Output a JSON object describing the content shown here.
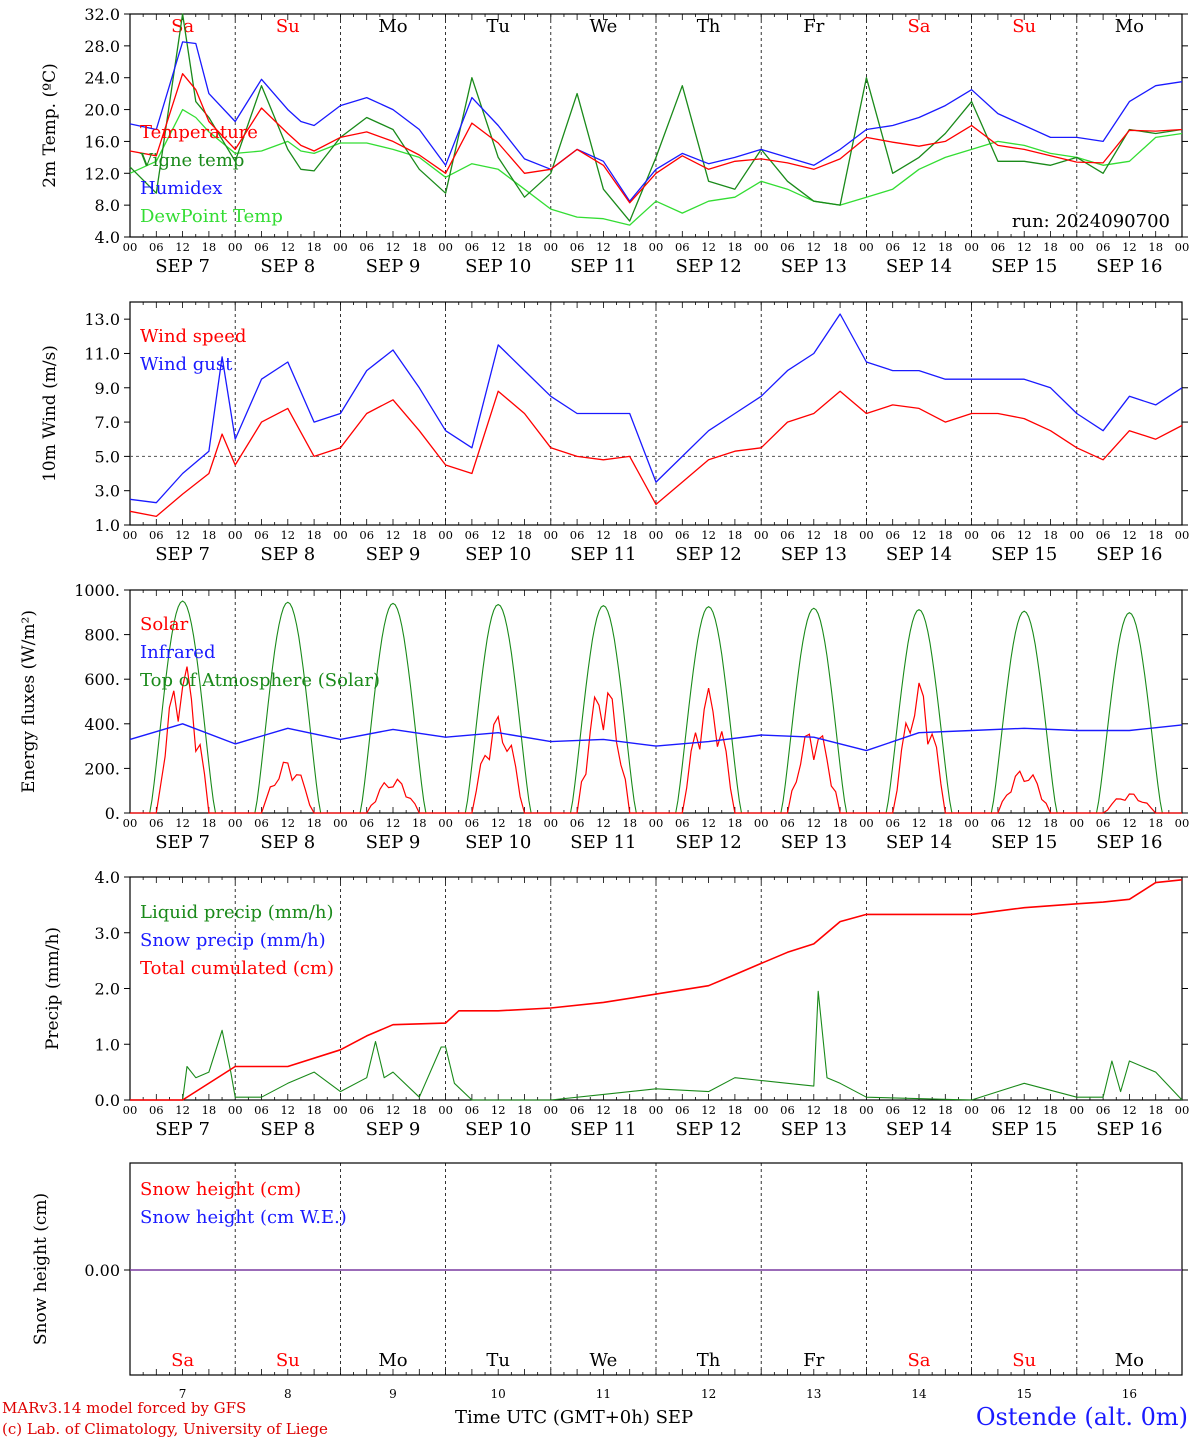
{
  "colors": {
    "red": "#ff0000",
    "green": "#1a8a1a",
    "blue": "#1a1aff",
    "lightgreen": "#33dd33",
    "purple": "#7a3aa0"
  },
  "footer": {
    "credit1": "MARv3.14 model forced by GFS",
    "credit2": "(c) Lab. of Climatology, University of Liege",
    "xtitle": "Time UTC (GMT+0h) SEP",
    "station": "Ostende (alt. 0m)"
  },
  "days": [
    {
      "short": "Sa",
      "weekend": true,
      "date": "SEP  7",
      "num": "7"
    },
    {
      "short": "Su",
      "weekend": true,
      "date": "SEP  8",
      "num": "8"
    },
    {
      "short": "Mo",
      "weekend": false,
      "date": "SEP  9",
      "num": "9"
    },
    {
      "short": "Tu",
      "weekend": false,
      "date": "SEP 10",
      "num": "10"
    },
    {
      "short": "We",
      "weekend": false,
      "date": "SEP 11",
      "num": "11"
    },
    {
      "short": "Th",
      "weekend": false,
      "date": "SEP 12",
      "num": "12"
    },
    {
      "short": "Fr",
      "weekend": false,
      "date": "SEP 13",
      "num": "13"
    },
    {
      "short": "Sa",
      "weekend": true,
      "date": "SEP 14",
      "num": "14"
    },
    {
      "short": "Su",
      "weekend": true,
      "date": "SEP 15",
      "num": "15"
    },
    {
      "short": "Mo",
      "weekend": false,
      "date": "SEP 16",
      "num": "16"
    }
  ],
  "hour_ticks": [
    "00",
    "06",
    "12",
    "18"
  ],
  "chart_data": [
    {
      "type": "line",
      "ylabel": "2m Temp. (ºC)",
      "ylim": [
        4,
        32
      ],
      "yticks": [
        "4.0",
        "8.0",
        "12.0",
        "16.0",
        "20.0",
        "24.0",
        "28.0",
        "32.0"
      ],
      "run_label": "run: 2024090700",
      "x_hours": [
        0,
        6,
        12,
        15,
        18,
        24,
        30,
        36,
        39,
        42,
        48,
        54,
        60,
        66,
        72,
        78,
        84,
        90,
        96,
        102,
        108,
        114,
        120,
        126,
        132,
        138,
        144,
        150,
        156,
        162,
        168,
        174,
        180,
        186,
        192,
        198,
        204,
        210,
        216,
        222,
        228,
        234,
        240
      ],
      "series": [
        {
          "name": "Temperature",
          "color": "red",
          "values": [
            14.8,
            14.2,
            24.5,
            22.5,
            18.5,
            15.0,
            20.2,
            17.0,
            15.5,
            14.8,
            16.5,
            17.2,
            16.0,
            14.3,
            12.0,
            18.3,
            15.8,
            12.0,
            12.5,
            15.0,
            13.0,
            8.3,
            12.0,
            14.2,
            12.5,
            13.5,
            13.8,
            13.3,
            12.5,
            13.8,
            16.5,
            15.9,
            15.4,
            16.0,
            18.0,
            15.5,
            15.0,
            14.2,
            13.4,
            13.3,
            17.4,
            17.3,
            17.5
          ]
        },
        {
          "name": "Vigne temp",
          "color": "green",
          "values": [
            12.8,
            9.5,
            32.0,
            21.0,
            19.0,
            13.5,
            23.0,
            15.0,
            12.5,
            12.3,
            16.5,
            19.0,
            17.5,
            12.5,
            9.5,
            24.0,
            14.0,
            9.0,
            12.0,
            22.0,
            10.0,
            6.0,
            14.0,
            23.0,
            11.0,
            10.0,
            15.0,
            11.0,
            8.5,
            8.0,
            24.0,
            12.0,
            14.0,
            17.0,
            21.0,
            13.5,
            13.5,
            13.0,
            14.0,
            12.0,
            17.5,
            17.0,
            17.5
          ]
        },
        {
          "name": "Humidex",
          "color": "blue",
          "values": [
            18.2,
            17.5,
            28.5,
            28.3,
            22.0,
            18.5,
            23.8,
            20.0,
            18.5,
            18.0,
            20.5,
            21.5,
            20.0,
            17.5,
            13.0,
            21.5,
            18.0,
            13.8,
            12.5,
            15.0,
            13.5,
            8.5,
            12.5,
            14.5,
            13.2,
            14.0,
            15.0,
            14.0,
            13.0,
            15.0,
            17.5,
            18.0,
            19.0,
            20.5,
            22.5,
            19.5,
            18.0,
            16.5,
            16.5,
            16.0,
            21.0,
            23.0,
            23.5
          ]
        },
        {
          "name": "DewPoint Temp",
          "color": "lightgreen",
          "values": [
            12.0,
            13.5,
            20.0,
            19.0,
            17.2,
            14.5,
            14.8,
            16.0,
            14.8,
            14.5,
            15.8,
            15.8,
            15.0,
            14.0,
            11.5,
            13.2,
            12.5,
            10.0,
            7.5,
            6.5,
            6.3,
            5.5,
            8.5,
            7.0,
            8.5,
            9.0,
            11.0,
            10.0,
            8.5,
            8.0,
            9.0,
            10.0,
            12.5,
            14.0,
            15.0,
            16.0,
            15.5,
            14.5,
            14.0,
            13.0,
            13.5,
            16.5,
            17.0
          ]
        }
      ]
    },
    {
      "type": "line",
      "ylabel": "10m Wind (m/s)",
      "ylim": [
        1,
        14
      ],
      "yticks": [
        "1.0",
        "3.0",
        "5.0",
        "7.0",
        "9.0",
        "11.0",
        "13.0"
      ],
      "refline": 5,
      "x_hours": [
        0,
        6,
        12,
        18,
        21,
        24,
        30,
        36,
        42,
        48,
        54,
        60,
        66,
        72,
        78,
        84,
        90,
        96,
        102,
        108,
        114,
        120,
        126,
        132,
        138,
        144,
        150,
        156,
        162,
        168,
        174,
        180,
        186,
        192,
        198,
        204,
        210,
        216,
        222,
        228,
        234,
        240
      ],
      "series": [
        {
          "name": "Wind speed",
          "color": "red",
          "values": [
            1.8,
            1.5,
            2.8,
            4.0,
            6.3,
            4.5,
            7.0,
            7.8,
            5.0,
            5.5,
            7.5,
            8.3,
            6.5,
            4.5,
            4.0,
            8.8,
            7.5,
            5.5,
            5.0,
            4.8,
            5.0,
            2.2,
            3.5,
            4.8,
            5.3,
            5.5,
            7.0,
            7.5,
            8.8,
            7.5,
            8.0,
            7.8,
            7.0,
            7.5,
            7.5,
            7.2,
            6.5,
            5.5,
            4.8,
            6.5,
            6.0,
            6.8
          ]
        },
        {
          "name": "Wind gust",
          "color": "blue",
          "values": [
            2.5,
            2.3,
            4.0,
            5.3,
            10.8,
            6.0,
            9.5,
            10.5,
            7.0,
            7.5,
            10.0,
            11.2,
            9.0,
            6.5,
            5.5,
            11.5,
            10.0,
            8.5,
            7.5,
            7.5,
            7.5,
            3.5,
            5.0,
            6.5,
            7.5,
            8.5,
            10.0,
            11.0,
            13.3,
            10.5,
            10.0,
            10.0,
            9.5,
            9.5,
            9.5,
            9.5,
            9.0,
            7.5,
            6.5,
            8.5,
            8.0,
            9.0
          ]
        }
      ]
    },
    {
      "type": "line",
      "ylabel": "Energy fluxes (W/m²)",
      "ylim": [
        0,
        1000
      ],
      "yticks": [
        "0.",
        "200.",
        "400.",
        "600.",
        "800.",
        "1000."
      ],
      "series": [
        {
          "name": "Solar",
          "color": "red",
          "daily_peaks": [
            680,
            240,
            160,
            440,
            600,
            560,
            400,
            590,
            200,
            90
          ]
        },
        {
          "name": "Infrared",
          "color": "blue",
          "x_hours": [
            0,
            12,
            24,
            36,
            48,
            60,
            72,
            84,
            96,
            108,
            120,
            132,
            144,
            156,
            168,
            180,
            192,
            204,
            216,
            228,
            240
          ],
          "values": [
            330,
            400,
            310,
            380,
            330,
            375,
            340,
            360,
            320,
            330,
            300,
            320,
            350,
            340,
            280,
            360,
            370,
            380,
            370,
            370,
            395
          ]
        },
        {
          "name": "Top of Atmosphere (Solar)",
          "color": "green",
          "daily_peaks": [
            950,
            945,
            940,
            935,
            930,
            925,
            918,
            912,
            905,
            898
          ]
        }
      ]
    },
    {
      "type": "line",
      "ylabel": "Precip (mm/h)",
      "ylim": [
        0,
        4
      ],
      "yticks": [
        "0.0",
        "1.0",
        "2.0",
        "3.0",
        "4.0"
      ],
      "series": [
        {
          "name": "Liquid precip (mm/h)",
          "color": "green",
          "x_hours": [
            0,
            12,
            13,
            15,
            18,
            21,
            23,
            24,
            30,
            36,
            42,
            48,
            54,
            56,
            58,
            60,
            66,
            71,
            72,
            74,
            78,
            96,
            108,
            120,
            132,
            138,
            144,
            150,
            156,
            157,
            159,
            162,
            168,
            192,
            204,
            216,
            222,
            224,
            226,
            228,
            234,
            240
          ],
          "values": [
            0,
            0,
            0.6,
            0.4,
            0.5,
            1.25,
            0.5,
            0.05,
            0.05,
            0.3,
            0.5,
            0.15,
            0.4,
            1.05,
            0.4,
            0.5,
            0.05,
            0.95,
            0.95,
            0.3,
            0,
            0,
            0.1,
            0.2,
            0.15,
            0.4,
            0.35,
            0.3,
            0.25,
            1.95,
            0.4,
            0.3,
            0.05,
            0,
            0.3,
            0.05,
            0.05,
            0.7,
            0.15,
            0.7,
            0.5,
            0
          ]
        },
        {
          "name": "Snow precip (mm/h)",
          "color": "blue",
          "values": []
        },
        {
          "name": "Total cumulated (cm)",
          "color": "red",
          "x_hours": [
            0,
            12,
            24,
            36,
            48,
            54,
            60,
            72,
            75,
            84,
            96,
            108,
            120,
            132,
            138,
            144,
            150,
            156,
            162,
            168,
            180,
            192,
            204,
            216,
            222,
            228,
            234,
            240
          ],
          "values": [
            0,
            0,
            0.6,
            0.6,
            0.9,
            1.15,
            1.35,
            1.38,
            1.6,
            1.6,
            1.65,
            1.75,
            1.9,
            2.05,
            2.25,
            2.45,
            2.65,
            2.8,
            3.2,
            3.33,
            3.33,
            3.33,
            3.45,
            3.52,
            3.55,
            3.6,
            3.9,
            3.95
          ]
        }
      ]
    },
    {
      "type": "line",
      "ylabel": "Snow height (cm)",
      "yticks": [
        "0.00"
      ],
      "series": [
        {
          "name": "Snow height (cm)",
          "color": "red",
          "values": [
            0,
            0
          ]
        },
        {
          "name": "Snow height (cm W.E.)",
          "color": "blue",
          "values": [
            0,
            0
          ]
        }
      ]
    }
  ]
}
